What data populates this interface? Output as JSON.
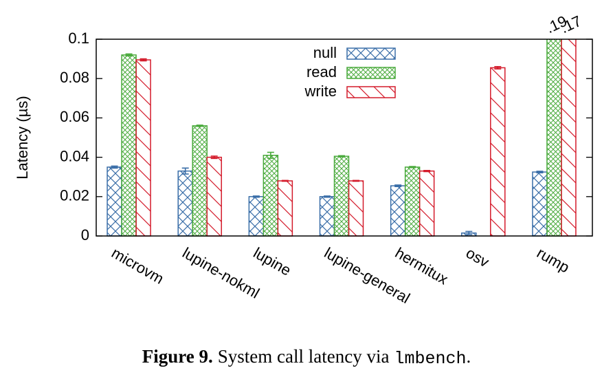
{
  "chart_data": {
    "type": "bar",
    "y_label": "Latency (µs)",
    "categories": [
      "microvm",
      "lupine-nokml",
      "lupine",
      "lupine-general",
      "hermitux",
      "osv",
      "rump"
    ],
    "series": [
      {
        "name": "null",
        "color": "#3a6ea8",
        "hatch": "cross",
        "values": [
          0.035,
          0.033,
          0.02,
          0.02,
          0.0255,
          0.0015,
          0.0325
        ],
        "errors": [
          0.0005,
          0.0015,
          0.0003,
          0.0003,
          0.0004,
          0.0008,
          0.0004
        ]
      },
      {
        "name": "read",
        "color": "#4aaa3c",
        "hatch": "fine-cross",
        "values": [
          0.092,
          0.056,
          0.041,
          0.0405,
          0.035,
          null,
          0.19
        ],
        "errors": [
          0.0005,
          0.0003,
          0.0015,
          0.0003,
          0.0003,
          null,
          null
        ],
        "value_labels": [
          null,
          null,
          null,
          null,
          null,
          null,
          ".19"
        ]
      },
      {
        "name": "write",
        "color": "#d41a2a",
        "hatch": "diagonal",
        "values": [
          0.0895,
          0.04,
          0.028,
          0.028,
          0.033,
          0.0855,
          0.17
        ],
        "errors": [
          0.0005,
          0.0006,
          0.0002,
          0.0002,
          0.0003,
          0.0006,
          null
        ],
        "value_labels": [
          null,
          null,
          null,
          null,
          null,
          null,
          ".17"
        ]
      }
    ],
    "ylim": [
      0,
      0.1
    ],
    "yticks": [
      0,
      0.02,
      0.04,
      0.06,
      0.08,
      0.1
    ],
    "legend": "top-center"
  },
  "caption": {
    "label": "Figure 9.",
    "text": "System call latency via",
    "code": "lmbench",
    "end": "."
  }
}
